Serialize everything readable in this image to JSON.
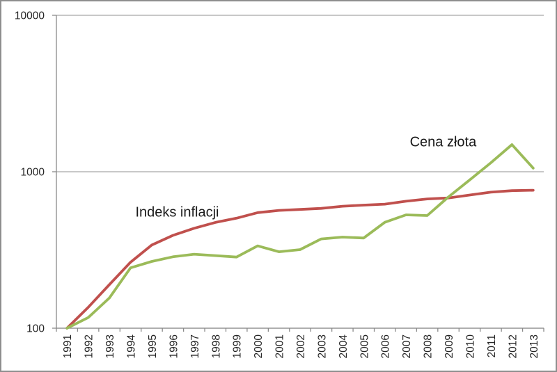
{
  "window": {
    "background": "#ffffff",
    "border_color": "#8e8e8e"
  },
  "chart_data": {
    "type": "line",
    "title": "",
    "xlabel": "",
    "ylabel": "",
    "x": [
      "1991",
      "1992",
      "1993",
      "1994",
      "1995",
      "1996",
      "1997",
      "1998",
      "1999",
      "2000",
      "2001",
      "2002",
      "2003",
      "2004",
      "2005",
      "2006",
      "2007",
      "2008",
      "2009",
      "2010",
      "2011",
      "2012",
      "2013"
    ],
    "series": [
      {
        "name": "Indeks inflacji",
        "color": "#C0504D",
        "values": [
          100,
          136,
          190,
          264,
          340,
          392,
          435,
          474,
          505,
          548,
          566,
          574,
          583,
          602,
          612,
          621,
          648,
          670,
          680,
          710,
          740,
          757,
          762
        ]
      },
      {
        "name": "Cena złota",
        "color": "#9BBB59",
        "values": [
          100,
          117,
          156,
          243,
          267,
          286,
          297,
          291,
          285,
          336,
          308,
          318,
          372,
          382,
          377,
          475,
          530,
          525,
          690,
          885,
          1140,
          1490,
          1055
        ]
      }
    ],
    "yaxis": {
      "scale": "log",
      "range": [
        100,
        10000
      ],
      "ticks": [
        100,
        1000,
        10000
      ],
      "tick_labels": [
        "100",
        "1000",
        "10000"
      ]
    },
    "grid": "horizontal",
    "legend": "none",
    "annotations": [
      {
        "text": "Indeks inflacji",
        "anchor_year": 1996.2,
        "anchor_value": 556
      },
      {
        "text": "Cena złota",
        "anchor_year": 2008.75,
        "anchor_value": 1560
      }
    ],
    "axis_color": "#8a8a8a",
    "grid_color": "#a6a6a6",
    "text_color": "#262626"
  }
}
